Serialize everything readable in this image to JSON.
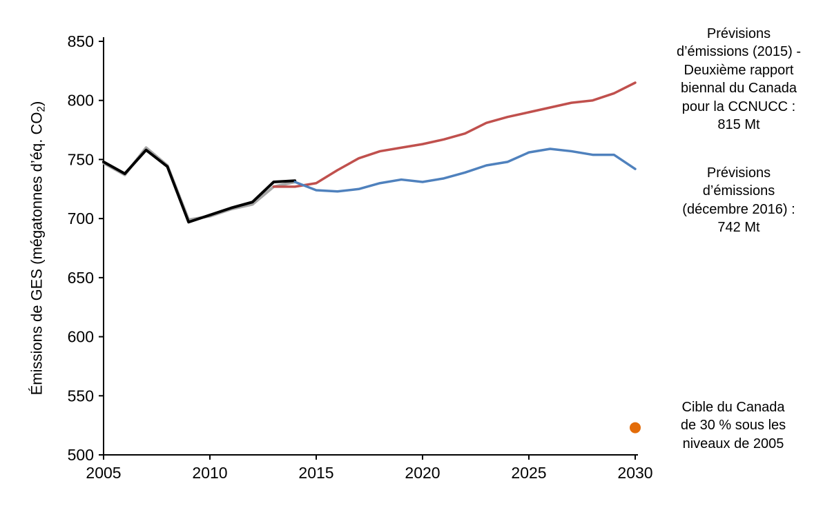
{
  "chart_data": {
    "type": "line",
    "title": "",
    "xlabel": "",
    "ylabel": {
      "main": "Émissions de GES (mégatonnes  d’éq. CO",
      "sub": "2",
      "end": ")"
    },
    "xlim": [
      2005,
      2030
    ],
    "ylim": [
      500,
      850
    ],
    "x_ticks": [
      2005,
      2010,
      2015,
      2020,
      2025,
      2030
    ],
    "y_ticks": [
      500,
      550,
      600,
      650,
      700,
      750,
      800,
      850
    ],
    "grid": false,
    "legend_position": "none",
    "series": [
      {
        "name": "historique-ombre",
        "color": "#a6a6a6",
        "width": 4,
        "x": [
          2005,
          2006,
          2007,
          2008,
          2009,
          2010,
          2011,
          2012,
          2013,
          2014
        ],
        "y": [
          747,
          737,
          760,
          745,
          699,
          702,
          708,
          712,
          727,
          731
        ]
      },
      {
        "name": "emissions-historiques",
        "color": "#000000",
        "width": 4,
        "x": [
          2005,
          2006,
          2007,
          2008,
          2009,
          2010,
          2011,
          2012,
          2013,
          2014
        ],
        "y": [
          748,
          738,
          758,
          744,
          697,
          703,
          709,
          714,
          731,
          732
        ]
      },
      {
        "name": "previsions-2015-ccnucc",
        "color": "#c0504d",
        "width": 3.5,
        "x": [
          2013,
          2014,
          2015,
          2016,
          2017,
          2018,
          2019,
          2020,
          2021,
          2022,
          2023,
          2024,
          2025,
          2026,
          2027,
          2028,
          2029,
          2030
        ],
        "y": [
          727,
          727,
          730,
          741,
          751,
          757,
          760,
          763,
          767,
          772,
          781,
          786,
          790,
          794,
          798,
          800,
          806,
          815
        ]
      },
      {
        "name": "previsions-decembre-2016",
        "color": "#4f81bd",
        "width": 3.5,
        "x": [
          2014,
          2015,
          2016,
          2017,
          2018,
          2019,
          2020,
          2021,
          2022,
          2023,
          2024,
          2025,
          2026,
          2027,
          2028,
          2029,
          2030
        ],
        "y": [
          731,
          724,
          723,
          725,
          730,
          733,
          731,
          734,
          739,
          745,
          748,
          756,
          759,
          757,
          754,
          754,
          742
        ]
      }
    ],
    "point": {
      "name": "cible-canada-2030",
      "x": 2030,
      "y": 523,
      "color": "#e36c09",
      "radius": 8
    }
  },
  "annotations": [
    {
      "text": "Prévisions\nd’émissions (2015) -\nDeuxième rapport\nbiennal du Canada\npour la CCNUCC :\n815 Mt"
    },
    {
      "text": "Prévisions\nd’émissions\n(décembre 2016) :\n742 Mt"
    },
    {
      "text": "Cible du Canada\nde 30 % sous les\nniveaux de 2005"
    }
  ]
}
